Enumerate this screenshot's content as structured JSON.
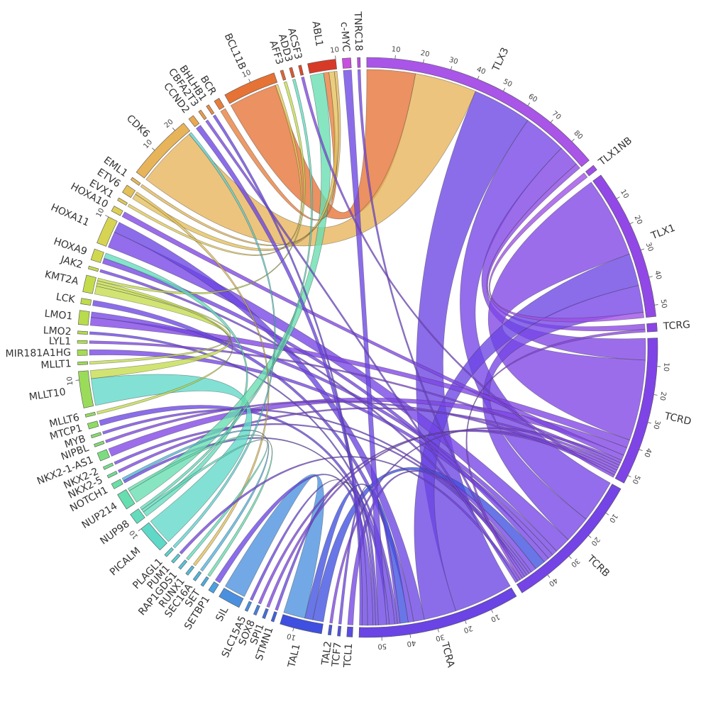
{
  "chart_data": {
    "type": "chord",
    "nodes": [
      {
        "name": "c-MYC",
        "color": "#c84fe0"
      },
      {
        "name": "TNRC18",
        "color": "#b94ee6"
      },
      {
        "name": "TLX3",
        "color": "#a855e8",
        "ticks": [
          10,
          20,
          30,
          40,
          50,
          60,
          70,
          80
        ]
      },
      {
        "name": "TLX1NB",
        "color": "#9d4ee8"
      },
      {
        "name": "TLX1",
        "color": "#9148e6",
        "ticks": [
          10,
          20,
          30,
          40,
          50
        ]
      },
      {
        "name": "TCRG",
        "color": "#8a45e4"
      },
      {
        "name": "TCRD",
        "color": "#7f44e6",
        "ticks": [
          10,
          20,
          30,
          40,
          50
        ]
      },
      {
        "name": "TCRB",
        "color": "#7444e6",
        "ticks": [
          10,
          20,
          30,
          40
        ]
      },
      {
        "name": "TCRA",
        "color": "#6a44e4",
        "ticks": [
          10,
          20,
          30,
          40,
          50
        ]
      },
      {
        "name": "TCL1",
        "color": "#5a4be0"
      },
      {
        "name": "TCF7",
        "color": "#5450e0"
      },
      {
        "name": "TAL2",
        "color": "#4a55e0"
      },
      {
        "name": "TAL1",
        "color": "#3f4fe0",
        "ticks": [
          10
        ]
      },
      {
        "name": "STMN1",
        "color": "#4060e0"
      },
      {
        "name": "SPI1",
        "color": "#4070e0"
      },
      {
        "name": "SOX8",
        "color": "#4282e0"
      },
      {
        "name": "SLC15A5",
        "color": "#4490e0"
      },
      {
        "name": "SIL",
        "color": "#4a90df"
      },
      {
        "name": "SETBP1",
        "color": "#4aa0e0"
      },
      {
        "name": "SET",
        "color": "#4cacdf"
      },
      {
        "name": "SEC16A",
        "color": "#4fb4de"
      },
      {
        "name": "RUNX1",
        "color": "#52bcdc"
      },
      {
        "name": "RAP1GDS1",
        "color": "#56c4da"
      },
      {
        "name": "PUM1",
        "color": "#5acbd6"
      },
      {
        "name": "PLAGL1",
        "color": "#5cd2d2"
      },
      {
        "name": "PICALM",
        "color": "#5fd8c8",
        "ticks": [
          10
        ]
      },
      {
        "name": "NUP98",
        "color": "#62dcbc"
      },
      {
        "name": "NUP214",
        "color": "#66deb0"
      },
      {
        "name": "NOTCH1",
        "color": "#6adea4"
      },
      {
        "name": "NKX2-5",
        "color": "#70de98"
      },
      {
        "name": "NKX2-2",
        "color": "#76de8c"
      },
      {
        "name": "NKX2-1-AS1",
        "color": "#7cdd80"
      },
      {
        "name": "NIPBL",
        "color": "#82dc76"
      },
      {
        "name": "MYB",
        "color": "#88dc6e"
      },
      {
        "name": "MTCP1",
        "color": "#8edc66"
      },
      {
        "name": "MLLT6",
        "color": "#94dc60"
      },
      {
        "name": "MLLT10",
        "color": "#9adc5a",
        "ticks": [
          10
        ]
      },
      {
        "name": "MLLT1",
        "color": "#a0dc56"
      },
      {
        "name": "MIR181A1HG",
        "color": "#a6dc52"
      },
      {
        "name": "LYL1",
        "color": "#acdc50"
      },
      {
        "name": "LMO2",
        "color": "#b2dc4e"
      },
      {
        "name": "LMO1",
        "color": "#b8dc4c"
      },
      {
        "name": "LCK",
        "color": "#bedc4c"
      },
      {
        "name": "KMT2A",
        "color": "#c4dc4c"
      },
      {
        "name": "JAK2",
        "color": "#cadc4e"
      },
      {
        "name": "HOXA9",
        "color": "#d0d850"
      },
      {
        "name": "HOXA11",
        "color": "#d6d452",
        "ticks": [
          10
        ]
      },
      {
        "name": "HOXA10",
        "color": "#dccf54"
      },
      {
        "name": "EVX1",
        "color": "#e0c856"
      },
      {
        "name": "ETV6",
        "color": "#e4c058"
      },
      {
        "name": "EML1",
        "color": "#e6b858"
      },
      {
        "name": "CDK6",
        "color": "#e8b45a",
        "ticks": [
          10,
          20
        ]
      },
      {
        "name": "CCND2",
        "color": "#eaa850"
      },
      {
        "name": "CBFA2T3",
        "color": "#ea9a48"
      },
      {
        "name": "BHLHB1",
        "color": "#ea8c42"
      },
      {
        "name": "BCR",
        "color": "#e87e3c"
      },
      {
        "name": "BCL11B",
        "color": "#e67236",
        "ticks": [
          10
        ]
      },
      {
        "name": "AFF3",
        "color": "#e46432"
      },
      {
        "name": "ADD3",
        "color": "#e2562e"
      },
      {
        "name": "ACSF3",
        "color": "#e0482a"
      },
      {
        "name": "ABL1",
        "color": "#d83a28",
        "ticks": [
          10
        ]
      }
    ],
    "links": [
      {
        "source": "BCL11B",
        "target": "TLX3",
        "value": 18
      },
      {
        "source": "CDK6",
        "target": "TLX3",
        "value": 23
      },
      {
        "source": "TCRA",
        "target": "TLX3",
        "value": 22
      },
      {
        "source": "TCRB",
        "target": "TLX3",
        "value": 16
      },
      {
        "source": "TCRD",
        "target": "TLX3",
        "value": 8
      },
      {
        "source": "TCRG",
        "target": "TLX3",
        "value": 2
      },
      {
        "source": "TCRD",
        "target": "TLX1",
        "value": 30
      },
      {
        "source": "TCRA",
        "target": "TLX1",
        "value": 12
      },
      {
        "source": "TCRB",
        "target": "TLX1",
        "value": 10
      },
      {
        "source": "TLX1NB",
        "target": "TLX1",
        "value": 2
      },
      {
        "source": "TCRB",
        "target": "HOXA11",
        "value": 6
      },
      {
        "source": "TCRA",
        "target": "HOXA11",
        "value": 4
      },
      {
        "source": "TCRD",
        "target": "LMO1",
        "value": 3
      },
      {
        "source": "TCRB",
        "target": "LMO1",
        "value": 2
      },
      {
        "source": "TCRA",
        "target": "LCK",
        "value": 2
      },
      {
        "source": "TCRB",
        "target": "MIR181A1HG",
        "value": 2
      },
      {
        "source": "TCRD",
        "target": "NKX2-1-AS1",
        "value": 3
      },
      {
        "source": "TCRD",
        "target": "HOXA10",
        "value": 2
      },
      {
        "source": "TCRB",
        "target": "HOXA9",
        "value": 2
      },
      {
        "source": "TAL1",
        "target": "TCRB",
        "value": 4
      },
      {
        "source": "TAL1",
        "target": "TCRA",
        "value": 3
      },
      {
        "source": "SIL",
        "target": "TAL1",
        "value": 8
      },
      {
        "source": "TCRD",
        "target": "TAL2",
        "value": 1
      },
      {
        "source": "TCRB",
        "target": "TCL1",
        "value": 2
      },
      {
        "source": "TCRA",
        "target": "TCF7",
        "value": 1
      },
      {
        "source": "TCRA",
        "target": "LMO2",
        "value": 1
      },
      {
        "source": "TCRD",
        "target": "LYL1",
        "value": 1
      },
      {
        "source": "TCRB",
        "target": "MYB",
        "value": 1
      },
      {
        "source": "TCRA",
        "target": "MTCP1",
        "value": 2
      },
      {
        "source": "TCRD",
        "target": "NKX2-5",
        "value": 1
      },
      {
        "source": "TCRB",
        "target": "NKX2-2",
        "value": 1
      },
      {
        "source": "TCRA",
        "target": "NOTCH1",
        "value": 1
      },
      {
        "source": "TCRB",
        "target": "JAK2",
        "value": 1
      },
      {
        "source": "TCRA",
        "target": "c-MYC",
        "value": 3
      },
      {
        "source": "TCRB",
        "target": "TNRC18",
        "value": 1
      },
      {
        "source": "TCRA",
        "target": "STMN1",
        "value": 1
      },
      {
        "source": "TCRD",
        "target": "SPI1",
        "value": 1
      },
      {
        "source": "TCRD",
        "target": "SOX8",
        "value": 1
      },
      {
        "source": "TCRA",
        "target": "SLC15A5",
        "value": 1
      },
      {
        "source": "TCRG",
        "target": "TCRB",
        "value": 1
      },
      {
        "source": "PICALM",
        "target": "MLLT10",
        "value": 10
      },
      {
        "source": "KMT2A",
        "target": "MLLT10",
        "value": 3
      },
      {
        "source": "KMT2A",
        "target": "MLLT1",
        "value": 1
      },
      {
        "source": "KMT2A",
        "target": "MLLT6",
        "value": 1
      },
      {
        "source": "KMT2A",
        "target": "AFF3",
        "value": 1
      },
      {
        "source": "NUP98",
        "target": "HOXA9",
        "value": 2
      },
      {
        "source": "NUP214",
        "target": "ABL1",
        "value": 5
      },
      {
        "source": "NUP214",
        "target": "SET",
        "value": 1
      },
      {
        "source": "BCR",
        "target": "ABL1",
        "value": 2
      },
      {
        "source": "ETV6",
        "target": "ABL1",
        "value": 2
      },
      {
        "source": "EML1",
        "target": "ABL1",
        "value": 1
      },
      {
        "source": "ETV6",
        "target": "RUNX1",
        "value": 1
      },
      {
        "source": "TCRA",
        "target": "SETBP1",
        "value": 2
      },
      {
        "source": "SEC16A",
        "target": "NOTCH1",
        "value": 1
      },
      {
        "source": "NUP98",
        "target": "RAP1GDS1",
        "value": 1
      },
      {
        "source": "TCRB",
        "target": "PUM1",
        "value": 1
      },
      {
        "source": "PLAGL1",
        "target": "CDK6",
        "value": 1
      },
      {
        "source": "TCRD",
        "target": "NIPBL",
        "value": 1
      },
      {
        "source": "EVX1",
        "target": "BCL11B",
        "value": 1
      },
      {
        "source": "TCRA",
        "target": "CCND2",
        "value": 2
      },
      {
        "source": "TCRB",
        "target": "CBFA2T3",
        "value": 1
      },
      {
        "source": "TCRA",
        "target": "BHLHB1",
        "value": 1
      },
      {
        "source": "NUP98",
        "target": "ADD3",
        "value": 1
      },
      {
        "source": "TCRD",
        "target": "ACSF3",
        "value": 1
      }
    ]
  }
}
